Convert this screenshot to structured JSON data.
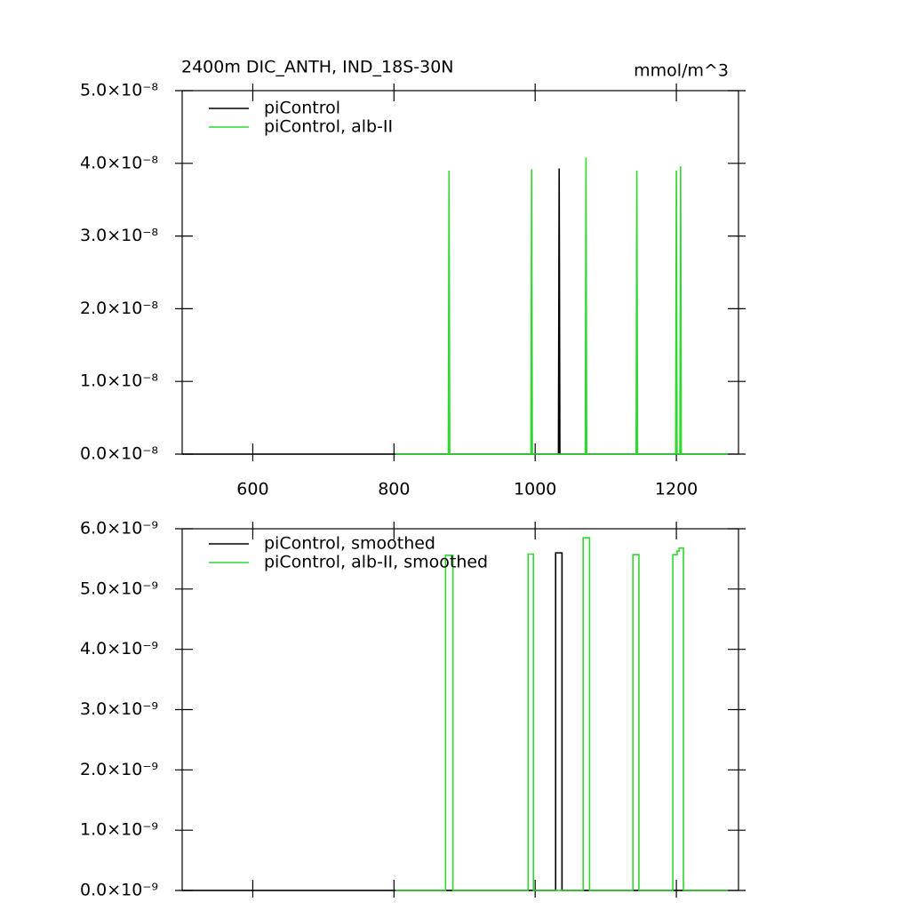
{
  "chart_data": [
    {
      "type": "line",
      "title": "2400m DIC_ANTH, IND_18S-30N",
      "units": "mmol/m^3",
      "xlim": [
        500,
        1288
      ],
      "xticks": [
        600,
        800,
        1000,
        1200
      ],
      "ylim": [
        0,
        5e-08
      ],
      "yticks": [
        {
          "value": 0,
          "label": "0.0×10⁻⁸"
        },
        {
          "value": 1e-08,
          "label": "1.0×10⁻⁸"
        },
        {
          "value": 2e-08,
          "label": "2.0×10⁻⁸"
        },
        {
          "value": 3e-08,
          "label": "3.0×10⁻⁸"
        },
        {
          "value": 4e-08,
          "label": "4.0×10⁻⁸"
        },
        {
          "value": 5e-08,
          "label": "5.0×10⁻⁸"
        }
      ],
      "series": [
        {
          "name": "piControl",
          "color": "#000000",
          "x": [
            500,
            1033,
            1034,
            1035,
            1273
          ],
          "values": [
            0,
            0,
            3.93e-08,
            0,
            0
          ]
        },
        {
          "name": "piControl, alb-II",
          "color": "#2ed82e",
          "x": [
            802,
            877,
            878,
            879,
            994,
            995,
            996,
            1071,
            1072,
            1073,
            1143,
            1144,
            1145,
            1199,
            1200,
            1201,
            1205,
            1206,
            1207,
            1273
          ],
          "values": [
            0,
            0,
            3.9e-08,
            0,
            0,
            3.92e-08,
            0,
            0,
            4.08e-08,
            0,
            0,
            3.9e-08,
            0,
            0,
            3.9e-08,
            0,
            0,
            3.96e-08,
            0,
            0
          ]
        }
      ]
    },
    {
      "type": "line",
      "xlim": [
        500,
        1288
      ],
      "xticks": [
        600,
        800,
        1000,
        1200
      ],
      "ylim": [
        0,
        6e-09
      ],
      "yticks": [
        {
          "value": 0,
          "label": "0.0×10⁻⁹"
        },
        {
          "value": 1e-09,
          "label": "1.0×10⁻⁹"
        },
        {
          "value": 2e-09,
          "label": "2.0×10⁻⁹"
        },
        {
          "value": 3e-09,
          "label": "3.0×10⁻⁹"
        },
        {
          "value": 4e-09,
          "label": "4.0×10⁻⁹"
        },
        {
          "value": 5e-09,
          "label": "5.0×10⁻⁹"
        },
        {
          "value": 6e-09,
          "label": "6.0×10⁻⁹"
        }
      ],
      "series": [
        {
          "name": "piControl, smoothed",
          "color": "#000000",
          "x": [
            500,
            1029,
            1029,
            1038,
            1038,
            1273
          ],
          "values": [
            0,
            0,
            5.6e-09,
            5.6e-09,
            0,
            0
          ]
        },
        {
          "name": "piControl, alb-II, smoothed",
          "color": "#2ed82e",
          "x": [
            802,
            873,
            873,
            883.5,
            883.5,
            990,
            990,
            997.5,
            997.5,
            1068,
            1068,
            1077,
            1077,
            1138.5,
            1138.5,
            1147,
            1147,
            1195,
            1195,
            1201,
            1201,
            1204,
            1204,
            1210,
            1210,
            1273
          ],
          "values": [
            0,
            0,
            5.56e-09,
            5.56e-09,
            0,
            0,
            5.58e-09,
            5.58e-09,
            0,
            0,
            5.85e-09,
            5.85e-09,
            0,
            0,
            5.57e-09,
            5.57e-09,
            0,
            0,
            5.57e-09,
            5.57e-09,
            5.63e-09,
            5.63e-09,
            5.68e-09,
            5.68e-09,
            0,
            0
          ]
        }
      ]
    }
  ]
}
